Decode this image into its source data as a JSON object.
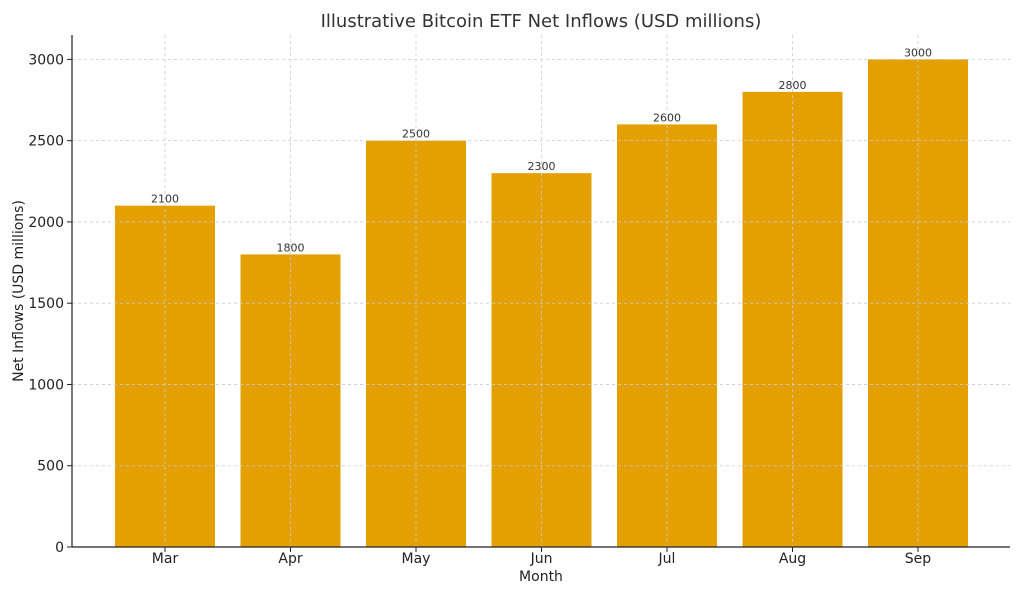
{
  "chart_data": {
    "type": "bar",
    "title": "Illustrative Bitcoin ETF Net Inflows (USD millions)",
    "xlabel": "Month",
    "ylabel": "Net Inflows (USD millions)",
    "categories": [
      "Mar",
      "Apr",
      "May",
      "Jun",
      "Jul",
      "Aug",
      "Sep"
    ],
    "values": [
      2100,
      1800,
      2500,
      2300,
      2600,
      2800,
      3000
    ],
    "data_labels": [
      "2100",
      "1800",
      "2500",
      "2300",
      "2600",
      "2800",
      "3000"
    ],
    "ylim": [
      0,
      3150
    ],
    "yticks": [
      0,
      500,
      1000,
      1500,
      2000,
      2500,
      3000
    ],
    "ytick_labels": [
      "0",
      "500",
      "1000",
      "1500",
      "2000",
      "2500",
      "3000"
    ],
    "grid": true,
    "bar_color": "#E3A000"
  }
}
